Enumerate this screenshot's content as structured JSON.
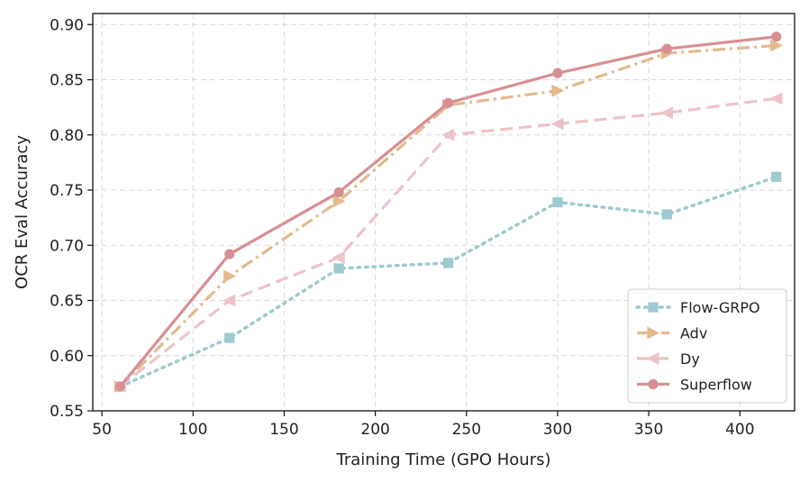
{
  "chart_data": {
    "type": "line",
    "title": "",
    "xlabel": "Training Time (GPO Hours)",
    "ylabel": "OCR Eval Accuracy",
    "xlim": [
      45,
      430
    ],
    "ylim": [
      0.55,
      0.91
    ],
    "xticks": [
      50,
      100,
      150,
      200,
      250,
      300,
      350,
      400
    ],
    "xtick_labels": [
      "50",
      "100",
      "150",
      "200",
      "250",
      "300",
      "350",
      "400"
    ],
    "yticks": [
      0.55,
      0.6,
      0.65,
      0.7,
      0.75,
      0.8,
      0.85,
      0.9
    ],
    "ytick_labels": [
      "0.55",
      "0.60",
      "0.65",
      "0.70",
      "0.75",
      "0.80",
      "0.85",
      "0.90"
    ],
    "grid": true,
    "legend_position": "lower-right",
    "x": [
      60,
      120,
      180,
      240,
      300,
      360,
      420
    ],
    "series": [
      {
        "name": "Flow-GRPO",
        "values": [
          0.572,
          0.616,
          0.679,
          0.684,
          0.739,
          0.728,
          0.762
        ],
        "color": "#9dcbcf",
        "linestyle": "dotted",
        "marker": "square"
      },
      {
        "name": "Adv",
        "values": [
          0.572,
          0.672,
          0.74,
          0.827,
          0.84,
          0.874,
          0.881
        ],
        "color": "#e2ba8d",
        "linestyle": "dashdot",
        "marker": "triangle-right"
      },
      {
        "name": "Dy",
        "values": [
          0.572,
          0.65,
          0.689,
          0.8,
          0.81,
          0.82,
          0.833
        ],
        "color": "#eec3c7",
        "linestyle": "dashed",
        "marker": "triangle-left"
      },
      {
        "name": "Superflow",
        "values": [
          0.572,
          0.692,
          0.748,
          0.829,
          0.856,
          0.878,
          0.889
        ],
        "color": "#d88f93",
        "linestyle": "solid",
        "marker": "circle"
      }
    ]
  }
}
